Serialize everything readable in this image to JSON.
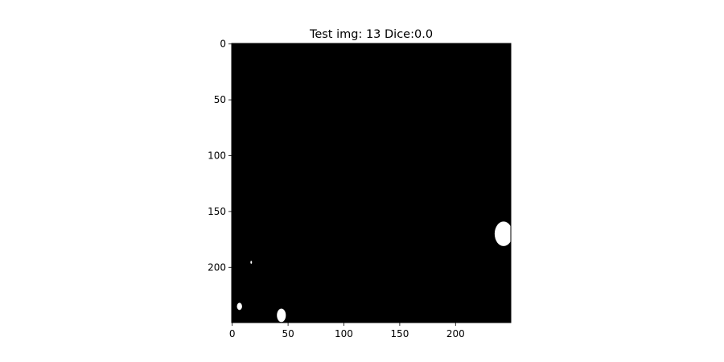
{
  "chart_data": {
    "type": "heatmap",
    "title": "Test img: 13 Dice:0.0",
    "xlabel": "",
    "ylabel": "",
    "xlim": [
      -0.5,
      249.5
    ],
    "ylim": [
      249.5,
      -0.5
    ],
    "image_size": [
      250,
      250
    ],
    "x_ticks": [
      0,
      50,
      100,
      150,
      200
    ],
    "x_tick_labels": [
      "0",
      "50",
      "100",
      "150",
      "200"
    ],
    "y_ticks": [
      0,
      50,
      100,
      150,
      200
    ],
    "y_tick_labels": [
      "0",
      "50",
      "100",
      "150",
      "200"
    ],
    "colormap": "gray",
    "grid": false,
    "colors": {
      "background": "#000000",
      "foreground": "#ffffff",
      "axes": "#000000"
    },
    "regions": [
      {
        "name": "blob-right",
        "cx": 243,
        "cy": 170,
        "rx": 8,
        "ry": 11
      },
      {
        "name": "blob-bottom",
        "cx": 44,
        "cy": 243,
        "rx": 4,
        "ry": 6
      },
      {
        "name": "blob-left",
        "cx": 6.5,
        "cy": 235,
        "rx": 2.3,
        "ry": 3.2
      },
      {
        "name": "blob-speck",
        "cx": 17,
        "cy": 195.5,
        "rx": 0.7,
        "ry": 1.3
      }
    ]
  }
}
